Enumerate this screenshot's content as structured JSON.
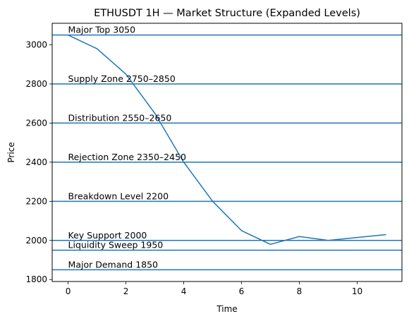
{
  "chart_data": {
    "type": "line",
    "title": "ETHUSDT 1H — Market Structure (Expanded Levels)",
    "xlabel": "Time",
    "ylabel": "Price",
    "xlim": [
      -0.55,
      11.55
    ],
    "ylim": [
      1790,
      3110
    ],
    "xticks": [
      0,
      2,
      4,
      6,
      8,
      10
    ],
    "yticks": [
      1800,
      2000,
      2200,
      2400,
      2600,
      2800,
      3000
    ],
    "grid": false,
    "line_color": "#1f77b4",
    "series": [
      {
        "x": [
          0,
          1,
          2,
          3,
          4,
          5,
          6,
          7,
          8,
          9,
          10,
          11
        ],
        "values": [
          3050,
          2980,
          2850,
          2650,
          2400,
          2200,
          2050,
          1980,
          2020,
          2000,
          2015,
          2030
        ]
      }
    ],
    "levels": [
      {
        "value": 3050,
        "label": "Major Top 3050"
      },
      {
        "value": 2800,
        "label": "Supply Zone 2750–2850"
      },
      {
        "value": 2600,
        "label": "Distribution 2550–2650"
      },
      {
        "value": 2400,
        "label": "Rejection Zone 2350–2450"
      },
      {
        "value": 2200,
        "label": "Breakdown Level 2200"
      },
      {
        "value": 2000,
        "label": "Key Support 2000"
      },
      {
        "value": 1950,
        "label": "Liquidity Sweep 1950"
      },
      {
        "value": 1850,
        "label": "Major Demand 1850"
      }
    ]
  }
}
